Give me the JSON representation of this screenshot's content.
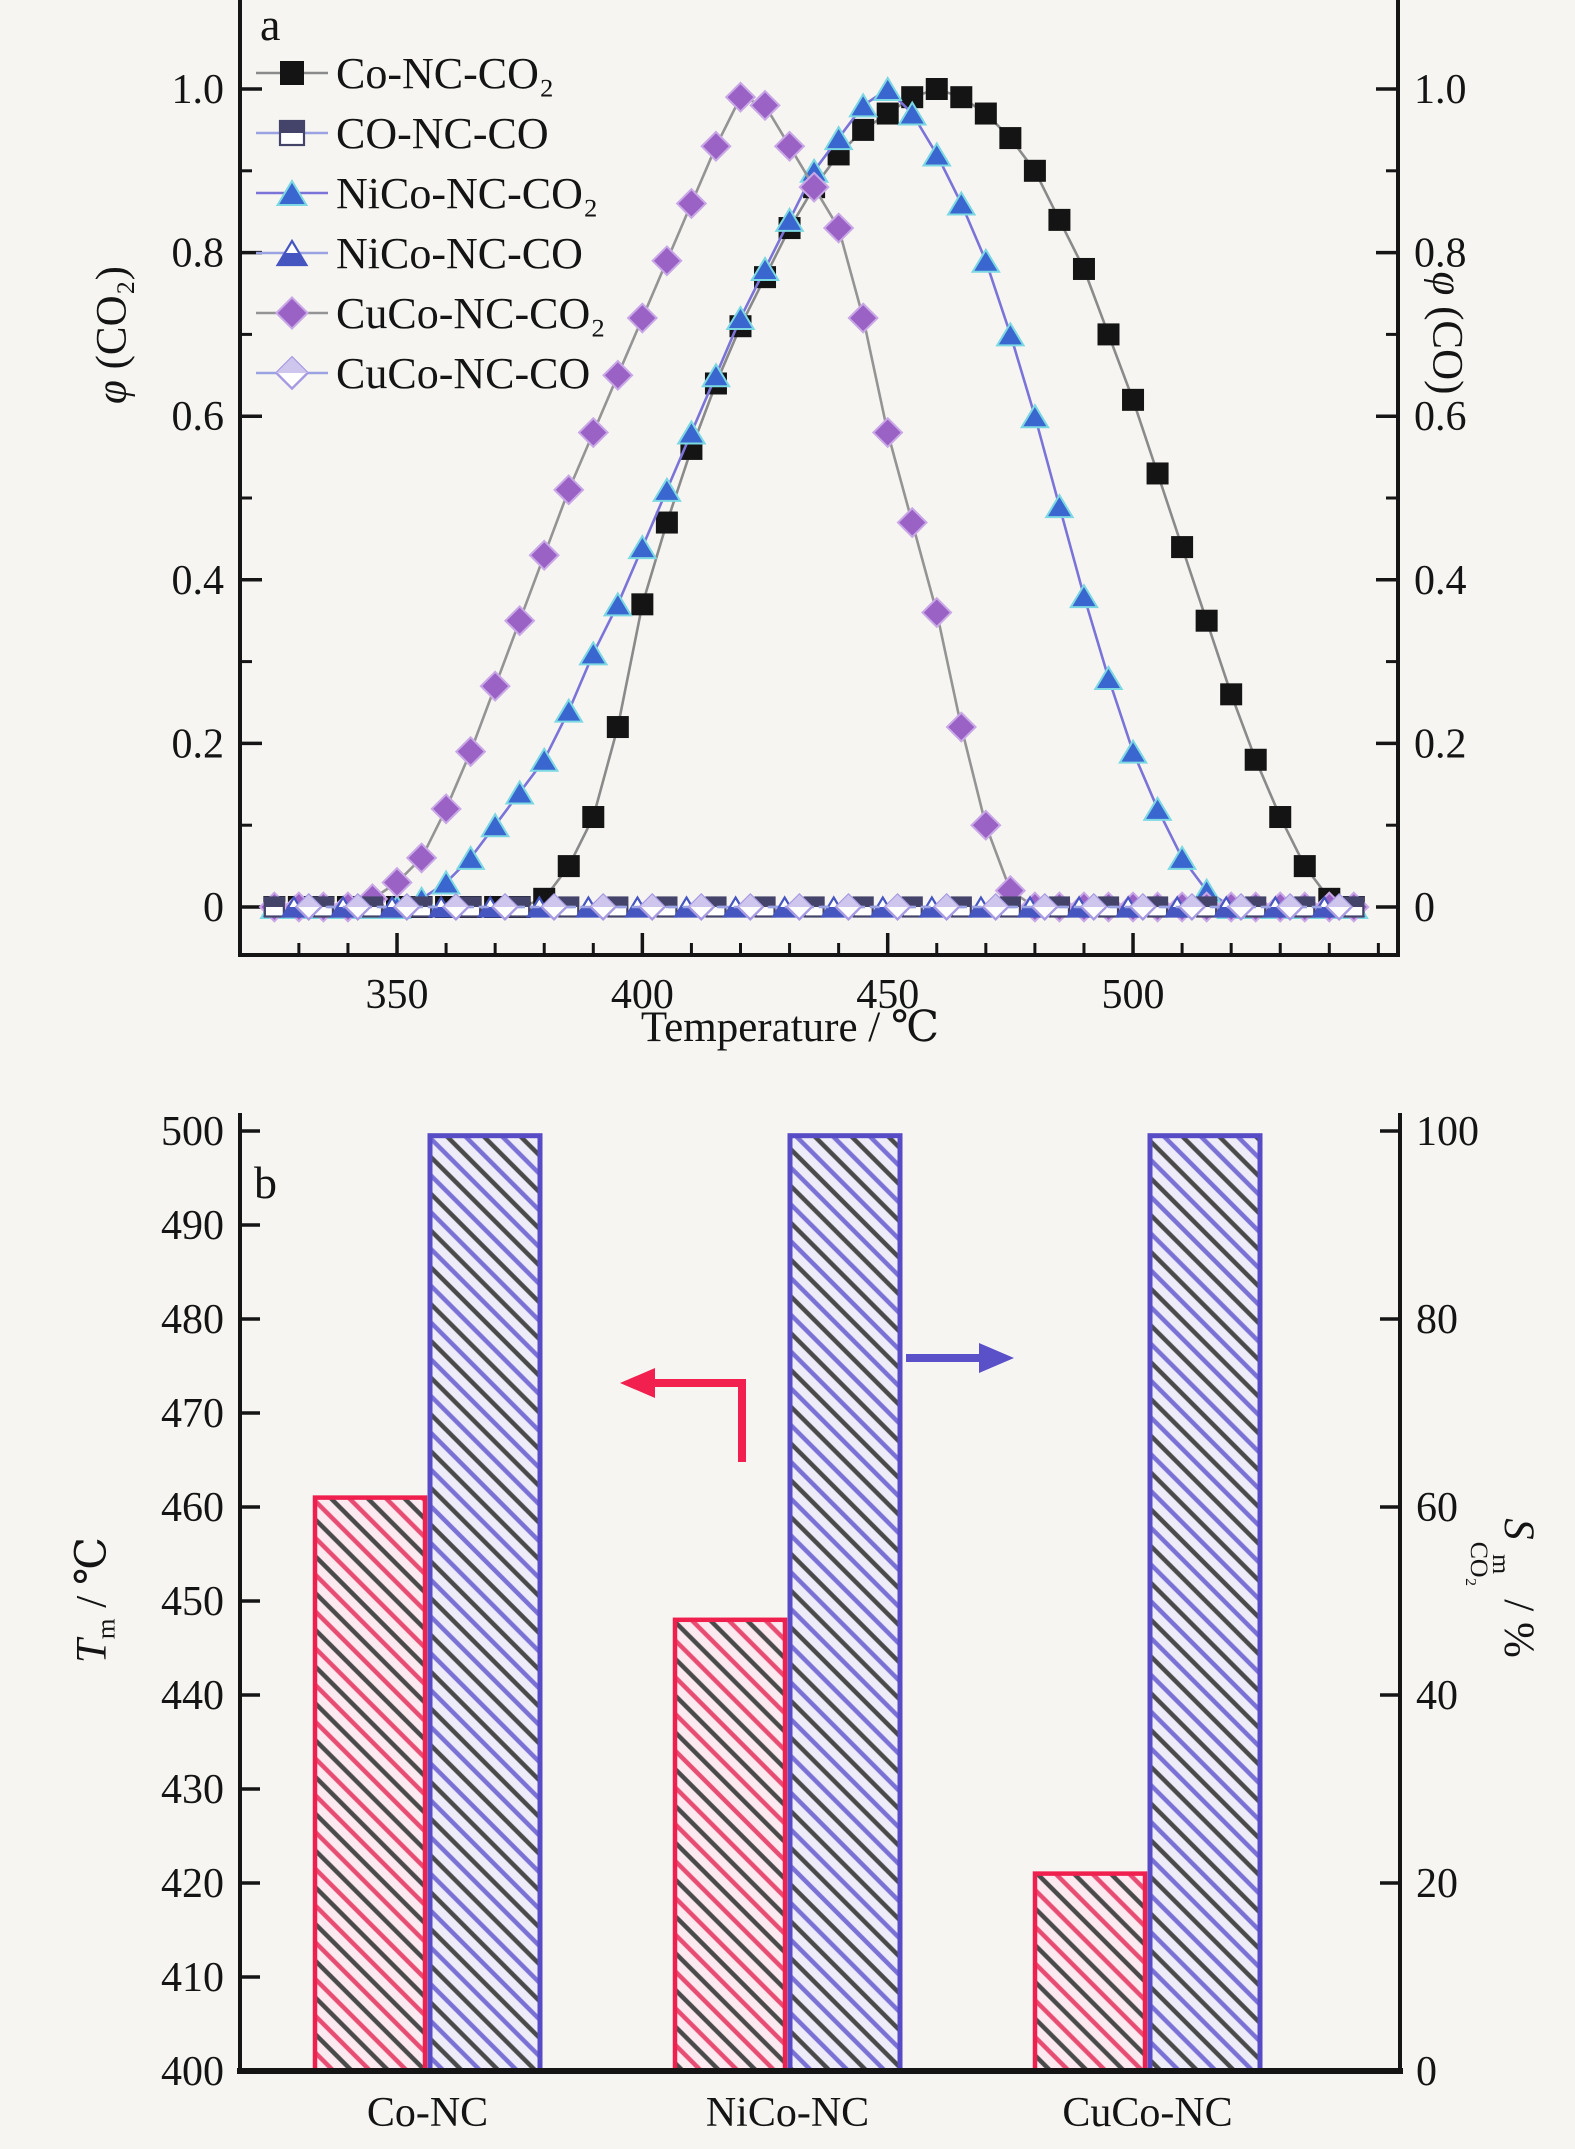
{
  "figure": {
    "background": "#f6f5f2"
  },
  "chart_data": [
    {
      "id": "panel-a",
      "type": "line",
      "panel_label": "a",
      "xlabel": "Temperature / ℃",
      "ylabel_left": {
        "phi": "φ",
        "rest": " (CO₂)"
      },
      "ylabel_right": {
        "phi": "φ",
        "rest": " (CO)"
      },
      "xlim": [
        318,
        554
      ],
      "ylim": [
        -0.06,
        1.1
      ],
      "xticks": [
        350,
        400,
        450,
        500
      ],
      "xtick_labels": [
        "350",
        "400",
        "450",
        "500"
      ],
      "xminor_step": 10,
      "yticks": [
        0,
        0.2,
        0.4,
        0.6,
        0.8,
        1.0
      ],
      "ytick_labels": [
        "0",
        "0.2",
        "0.4",
        "0.6",
        "0.8",
        "1.0"
      ],
      "yminors": [
        0.1,
        0.3,
        0.5,
        0.7,
        0.9
      ],
      "legend_position": "upper-left",
      "grid": false,
      "x": [
        325,
        330,
        335,
        340,
        345,
        350,
        355,
        360,
        365,
        370,
        375,
        380,
        385,
        390,
        395,
        400,
        405,
        410,
        415,
        420,
        425,
        430,
        435,
        440,
        445,
        450,
        455,
        460,
        465,
        470,
        475,
        480,
        485,
        490,
        495,
        500,
        505,
        510,
        515,
        520,
        525,
        530,
        535,
        540,
        545
      ],
      "series": [
        {
          "name": "Co-NC-CO₂",
          "marker": "square",
          "style": "filled",
          "color": "#141414",
          "line_color": "#8a8a8a",
          "values": [
            0,
            0,
            0,
            0,
            0,
            0,
            0,
            0,
            0,
            0,
            0,
            0.01,
            0.05,
            0.11,
            0.22,
            0.37,
            0.47,
            0.56,
            0.64,
            0.71,
            0.77,
            0.83,
            0.88,
            0.92,
            0.95,
            0.97,
            0.99,
            1,
            0.99,
            0.97,
            0.94,
            0.9,
            0.84,
            0.78,
            0.7,
            0.62,
            0.53,
            0.44,
            0.35,
            0.26,
            0.18,
            0.11,
            0.05,
            0.01,
            0
          ]
        },
        {
          "name": "CO-NC-CO",
          "marker": "square",
          "style": "half",
          "color": "#44446a",
          "line_color": "#9aa2e2",
          "line_dash": "10 7",
          "x": [
            325,
            335,
            345,
            355,
            365,
            375,
            385,
            395,
            405,
            415,
            425,
            435,
            445,
            455,
            465,
            475,
            485,
            495,
            505,
            515,
            525,
            535,
            545
          ],
          "values": [
            0,
            0,
            0,
            0,
            0,
            0,
            0,
            0,
            0,
            0,
            0,
            0,
            0,
            0,
            0,
            0,
            0,
            0,
            0,
            0,
            0,
            0,
            0
          ]
        },
        {
          "name": "NiCo-NC-CO₂",
          "marker": "triangle",
          "style": "filled",
          "color": "#3a66d0",
          "edge": "#7cd8e2",
          "line_color": "#7b74d8",
          "values": [
            0,
            0,
            0,
            0,
            0,
            0,
            0.01,
            0.03,
            0.06,
            0.1,
            0.14,
            0.18,
            0.24,
            0.31,
            0.37,
            0.44,
            0.51,
            0.58,
            0.65,
            0.72,
            0.78,
            0.84,
            0.9,
            0.94,
            0.98,
            1,
            0.97,
            0.92,
            0.86,
            0.79,
            0.7,
            0.6,
            0.49,
            0.38,
            0.28,
            0.19,
            0.12,
            0.06,
            0.02,
            0,
            0,
            0,
            0,
            0,
            0
          ]
        },
        {
          "name": "NiCo-NC-CO",
          "marker": "triangle",
          "style": "half",
          "color": "#4656c0",
          "line_color": "#9aa2e2",
          "line_dash": "10 7",
          "x": [
            329,
            339,
            349,
            359,
            369,
            379,
            389,
            399,
            409,
            419,
            429,
            439,
            449,
            459,
            469,
            479,
            489,
            499,
            509,
            519,
            529,
            539
          ],
          "values": [
            0,
            0,
            0,
            0,
            0,
            0,
            0,
            0,
            0,
            0,
            0,
            0,
            0,
            0,
            0,
            0,
            0,
            0,
            0,
            0,
            0,
            0
          ]
        },
        {
          "name": "CuCo-NC-CO₂",
          "marker": "diamond",
          "style": "filled",
          "color": "#9b62c6",
          "edge": "#c9a8e6",
          "line_color": "#949494",
          "values": [
            0,
            0,
            0,
            0,
            0.01,
            0.03,
            0.06,
            0.12,
            0.19,
            0.27,
            0.35,
            0.43,
            0.51,
            0.58,
            0.65,
            0.72,
            0.79,
            0.86,
            0.93,
            0.99,
            0.98,
            0.93,
            0.88,
            0.83,
            0.72,
            0.58,
            0.47,
            0.36,
            0.22,
            0.1,
            0.02,
            0,
            0,
            0,
            0,
            0,
            0,
            0,
            0,
            0,
            0,
            0,
            0,
            0,
            0
          ]
        },
        {
          "name": "CuCo-NC-CO",
          "marker": "diamond",
          "style": "open",
          "color": "#a79ae2",
          "fill2": "#cfc6ee",
          "line_color": "#9aa2e2",
          "line_dash": "10 7",
          "x": [
            332,
            342,
            352,
            362,
            372,
            382,
            392,
            402,
            412,
            422,
            432,
            442,
            452,
            462,
            472,
            482,
            492,
            502,
            512,
            522,
            532,
            542
          ],
          "values": [
            0,
            0,
            0,
            0,
            0,
            0,
            0,
            0,
            0,
            0,
            0,
            0,
            0,
            0,
            0,
            0,
            0,
            0,
            0,
            0,
            0,
            0
          ]
        }
      ]
    },
    {
      "id": "panel-b",
      "type": "bar",
      "panel_label": "b",
      "categories": [
        "Co-NC",
        "NiCo-NC",
        "CuCo-NC"
      ],
      "ylabel_left": {
        "main": "T",
        "sub": "m",
        "rest": " / ℃"
      },
      "ylabel_right": {
        "main": "S",
        "sup": "m",
        "sub": "CO₂",
        "rest": " / %"
      },
      "ylim_left": [
        400,
        500
      ],
      "yticks_left": [
        400,
        410,
        420,
        430,
        440,
        450,
        460,
        470,
        480,
        490,
        500
      ],
      "ylim_right": [
        0,
        100
      ],
      "yticks_right": [
        0,
        20,
        40,
        60,
        80,
        100
      ],
      "series": [
        {
          "name": "Tm",
          "axis": "left",
          "values": [
            461,
            448,
            421
          ],
          "edge_color": "#f0204e",
          "fill_bg": "#fdeaf0",
          "hatch_colors": [
            "#e74d72",
            "#4a4a4a"
          ]
        },
        {
          "name": "SCO2",
          "axis": "right",
          "values": [
            99.5,
            99.5,
            99.5
          ],
          "edge_color": "#584cc6",
          "fill_bg": "#efecf9",
          "hatch_colors": [
            "#7a71d4",
            "#4a4a4a"
          ]
        }
      ],
      "left_arrow_color": "#f2204e",
      "right_arrow_color": "#5a50c8"
    }
  ]
}
